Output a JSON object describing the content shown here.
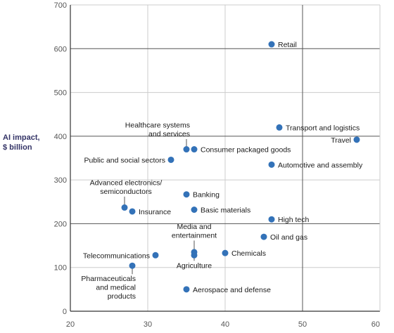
{
  "chart_data": {
    "type": "scatter",
    "title": "",
    "xlabel": "",
    "ylabel": "AI impact,",
    "ylabel_unit": "$ billion",
    "xlim": [
      20,
      60
    ],
    "ylim": [
      0,
      700
    ],
    "xticks": [
      20,
      30,
      40,
      50,
      60
    ],
    "yticks": [
      0,
      100,
      200,
      300,
      400,
      500,
      600,
      700
    ],
    "major_x": [
      50
    ],
    "major_y": [
      200,
      400,
      600
    ],
    "grid": true,
    "colors": {
      "point": "#3372b8",
      "minor_grid": "#cccccc",
      "major_grid": "#555555",
      "leader": "#555555",
      "ylabel": "#333366"
    },
    "points": [
      {
        "label": "Retail",
        "x": 46,
        "y": 610
      },
      {
        "label": "Transport and logistics",
        "x": 47,
        "y": 420
      },
      {
        "label": "Travel",
        "x": 57,
        "y": 392
      },
      {
        "label": "Healthcare systems\nand services",
        "x": 35,
        "y": 370
      },
      {
        "label": "Consumer packaged goods",
        "x": 36,
        "y": 370
      },
      {
        "label": "Public and social sectors",
        "x": 33,
        "y": 346
      },
      {
        "label": "Automotive and assembly",
        "x": 46,
        "y": 335
      },
      {
        "label": "Banking",
        "x": 35,
        "y": 267
      },
      {
        "label": "Advanced electronics/\nsemiconductors",
        "x": 27,
        "y": 237
      },
      {
        "label": "Basic materials",
        "x": 36,
        "y": 232
      },
      {
        "label": "Insurance",
        "x": 28,
        "y": 228
      },
      {
        "label": "High tech",
        "x": 46,
        "y": 210
      },
      {
        "label": "Oil and gas",
        "x": 45,
        "y": 170
      },
      {
        "label": "Media and\nentertainment",
        "x": 36,
        "y": 135
      },
      {
        "label": "Chemicals",
        "x": 40,
        "y": 133
      },
      {
        "label": "Agriculture",
        "x": 36,
        "y": 128
      },
      {
        "label": "Telecommunications",
        "x": 31,
        "y": 128
      },
      {
        "label": "Pharmaceuticals\nand medical\nproducts",
        "x": 28,
        "y": 104
      },
      {
        "label": "Aerospace and defense",
        "x": 35,
        "y": 50
      }
    ]
  }
}
